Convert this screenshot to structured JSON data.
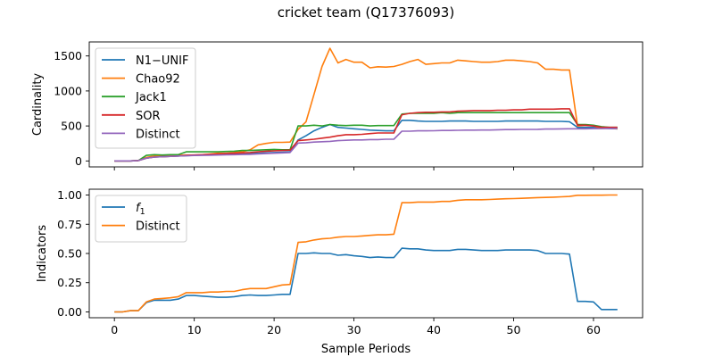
{
  "title": "cricket team (Q17376093)",
  "colors": {
    "blue": "#1f77b4",
    "orange": "#ff7f0e",
    "green": "#2ca02c",
    "red": "#d62728",
    "purple": "#9467bd"
  },
  "chart_data": [
    {
      "type": "line",
      "ylabel": "Cardinality",
      "xlabel": "",
      "xlim": [
        -3.15,
        66.15
      ],
      "ylim": [
        -85,
        1700
      ],
      "yticks": [
        0,
        500,
        1000,
        1500
      ],
      "xticks": [
        0,
        10,
        20,
        30,
        40,
        50,
        60
      ],
      "show_xtick_labels": false,
      "legend_position": "upper-left",
      "x": [
        0,
        1,
        2,
        3,
        4,
        5,
        6,
        7,
        8,
        9,
        10,
        11,
        12,
        13,
        14,
        15,
        16,
        17,
        18,
        19,
        20,
        21,
        22,
        23,
        24,
        25,
        26,
        27,
        28,
        29,
        30,
        31,
        32,
        33,
        34,
        35,
        36,
        37,
        38,
        39,
        40,
        41,
        42,
        43,
        44,
        45,
        46,
        47,
        48,
        49,
        50,
        51,
        52,
        53,
        54,
        55,
        56,
        57,
        58,
        59,
        60,
        61,
        62,
        63
      ],
      "series": [
        {
          "name": "N1−UNIF",
          "color": "#1f77b4",
          "values": [
            0,
            0,
            0,
            5,
            40,
            55,
            60,
            65,
            70,
            75,
            80,
            85,
            88,
            90,
            92,
            95,
            100,
            105,
            110,
            115,
            120,
            125,
            130,
            300,
            360,
            430,
            480,
            520,
            480,
            470,
            460,
            450,
            440,
            435,
            430,
            430,
            580,
            580,
            570,
            565,
            565,
            565,
            570,
            570,
            570,
            565,
            565,
            565,
            565,
            570,
            570,
            570,
            570,
            570,
            565,
            565,
            565,
            560,
            480,
            480,
            480,
            470,
            465,
            460
          ]
        },
        {
          "name": "Chao92",
          "color": "#ff7f0e",
          "values": [
            0,
            0,
            0,
            5,
            50,
            70,
            70,
            70,
            80,
            85,
            85,
            90,
            100,
            110,
            110,
            120,
            130,
            160,
            230,
            250,
            265,
            265,
            270,
            450,
            560,
            950,
            1350,
            1610,
            1400,
            1450,
            1410,
            1410,
            1330,
            1345,
            1340,
            1350,
            1380,
            1420,
            1450,
            1380,
            1390,
            1400,
            1400,
            1440,
            1430,
            1420,
            1410,
            1410,
            1420,
            1440,
            1440,
            1430,
            1420,
            1400,
            1310,
            1310,
            1300,
            1300,
            500,
            510,
            500,
            470,
            470,
            460
          ]
        },
        {
          "name": "Jack1",
          "color": "#2ca02c",
          "values": [
            0,
            0,
            0,
            5,
            80,
            90,
            85,
            90,
            90,
            130,
            130,
            130,
            130,
            130,
            135,
            140,
            150,
            150,
            155,
            160,
            165,
            160,
            160,
            500,
            500,
            510,
            500,
            520,
            510,
            505,
            510,
            510,
            500,
            505,
            505,
            505,
            670,
            680,
            680,
            680,
            680,
            690,
            680,
            690,
            690,
            690,
            690,
            690,
            690,
            690,
            690,
            690,
            690,
            690,
            690,
            690,
            690,
            690,
            520,
            520,
            510,
            490,
            480,
            480
          ]
        },
        {
          "name": "SOR",
          "color": "#d62728",
          "values": [
            0,
            0,
            0,
            5,
            40,
            55,
            60,
            65,
            70,
            80,
            85,
            90,
            95,
            100,
            105,
            110,
            115,
            120,
            130,
            140,
            145,
            150,
            155,
            290,
            300,
            310,
            325,
            340,
            360,
            375,
            375,
            380,
            390,
            400,
            400,
            400,
            660,
            680,
            690,
            695,
            695,
            700,
            700,
            710,
            715,
            720,
            720,
            720,
            725,
            725,
            730,
            730,
            740,
            740,
            740,
            740,
            745,
            745,
            510,
            510,
            500,
            480,
            480,
            480
          ]
        },
        {
          "name": "Distinct",
          "color": "#9467bd",
          "values": [
            0,
            0,
            0,
            5,
            40,
            55,
            60,
            65,
            70,
            75,
            78,
            80,
            82,
            85,
            88,
            90,
            92,
            95,
            100,
            105,
            110,
            115,
            120,
            255,
            260,
            270,
            275,
            280,
            290,
            295,
            300,
            300,
            305,
            305,
            310,
            310,
            425,
            425,
            430,
            430,
            432,
            435,
            435,
            438,
            440,
            440,
            442,
            442,
            445,
            448,
            448,
            450,
            450,
            452,
            455,
            455,
            458,
            460,
            460,
            460,
            462,
            462,
            465,
            465
          ]
        }
      ]
    },
    {
      "type": "line",
      "ylabel": "Indicators",
      "xlabel": "Sample Periods",
      "xlim": [
        -3.15,
        66.15
      ],
      "ylim": [
        -0.05,
        1.05
      ],
      "yticks": [
        0.0,
        0.25,
        0.5,
        0.75,
        1.0
      ],
      "ytick_labels": [
        "0.00",
        "0.25",
        "0.50",
        "0.75",
        "1.00"
      ],
      "xticks": [
        0,
        10,
        20,
        30,
        40,
        50,
        60
      ],
      "show_xtick_labels": true,
      "legend_position": "upper-left",
      "x": [
        0,
        1,
        2,
        3,
        4,
        5,
        6,
        7,
        8,
        9,
        10,
        11,
        12,
        13,
        14,
        15,
        16,
        17,
        18,
        19,
        20,
        21,
        22,
        23,
        24,
        25,
        26,
        27,
        28,
        29,
        30,
        31,
        32,
        33,
        34,
        35,
        36,
        37,
        38,
        39,
        40,
        41,
        42,
        43,
        44,
        45,
        46,
        47,
        48,
        49,
        50,
        51,
        52,
        53,
        54,
        55,
        56,
        57,
        58,
        59,
        60,
        61,
        62,
        63
      ],
      "series": [
        {
          "name": "f1",
          "name_main": "f",
          "name_sub": "1",
          "color": "#1f77b4",
          "values": [
            0.0,
            0.0,
            0.01,
            0.01,
            0.08,
            0.1,
            0.1,
            0.1,
            0.11,
            0.14,
            0.14,
            0.135,
            0.13,
            0.125,
            0.125,
            0.13,
            0.14,
            0.145,
            0.14,
            0.14,
            0.145,
            0.15,
            0.15,
            0.5,
            0.5,
            0.505,
            0.5,
            0.5,
            0.485,
            0.49,
            0.48,
            0.475,
            0.465,
            0.47,
            0.465,
            0.465,
            0.545,
            0.54,
            0.54,
            0.53,
            0.525,
            0.525,
            0.525,
            0.535,
            0.535,
            0.53,
            0.525,
            0.525,
            0.525,
            0.53,
            0.53,
            0.53,
            0.53,
            0.525,
            0.5,
            0.5,
            0.5,
            0.495,
            0.09,
            0.09,
            0.085,
            0.02,
            0.02,
            0.02
          ]
        },
        {
          "name": "Distinct",
          "color": "#ff7f0e",
          "values": [
            0.0,
            0.0,
            0.01,
            0.01,
            0.085,
            0.11,
            0.115,
            0.12,
            0.13,
            0.165,
            0.165,
            0.165,
            0.17,
            0.17,
            0.175,
            0.175,
            0.19,
            0.2,
            0.2,
            0.2,
            0.215,
            0.23,
            0.235,
            0.595,
            0.6,
            0.615,
            0.625,
            0.63,
            0.64,
            0.645,
            0.645,
            0.65,
            0.655,
            0.66,
            0.66,
            0.665,
            0.935,
            0.935,
            0.94,
            0.94,
            0.94,
            0.945,
            0.945,
            0.955,
            0.96,
            0.96,
            0.96,
            0.962,
            0.965,
            0.968,
            0.97,
            0.972,
            0.975,
            0.978,
            0.98,
            0.982,
            0.985,
            0.988,
            0.998,
            0.998,
            0.999,
            0.999,
            1.0,
            1.0
          ]
        }
      ]
    }
  ]
}
